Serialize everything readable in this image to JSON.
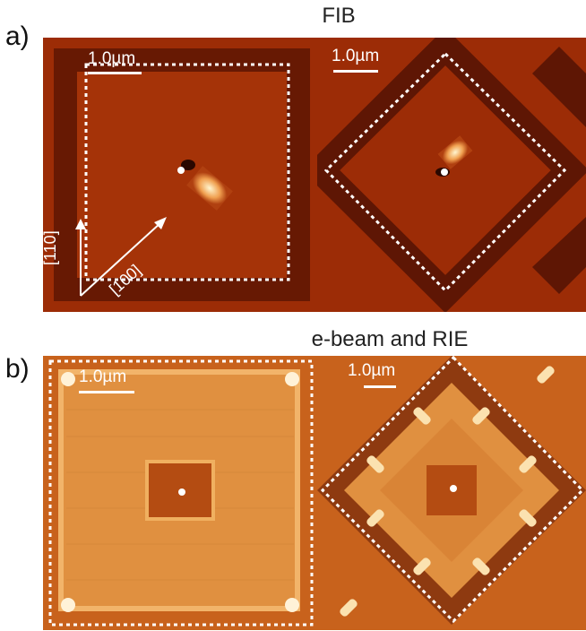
{
  "panel_a": {
    "label": "a)",
    "title": "FIB",
    "left_image": {
      "scale_label": "1.0µm",
      "axis_labels": [
        "[110]",
        "[100]"
      ]
    },
    "right_image": {
      "scale_label": "1.0µm"
    }
  },
  "panel_b": {
    "label": "b)",
    "title": "e-beam and RIE",
    "left_image": {
      "scale_label": "1.0µm"
    },
    "right_image": {
      "scale_label": "1.0µm"
    }
  },
  "colors": {
    "fib_background": "#9c2c06",
    "fib_trench": "#5e1604",
    "rie_background": "#c8621c",
    "rie_light": "#e89a4e",
    "marker": "#ffffff"
  }
}
